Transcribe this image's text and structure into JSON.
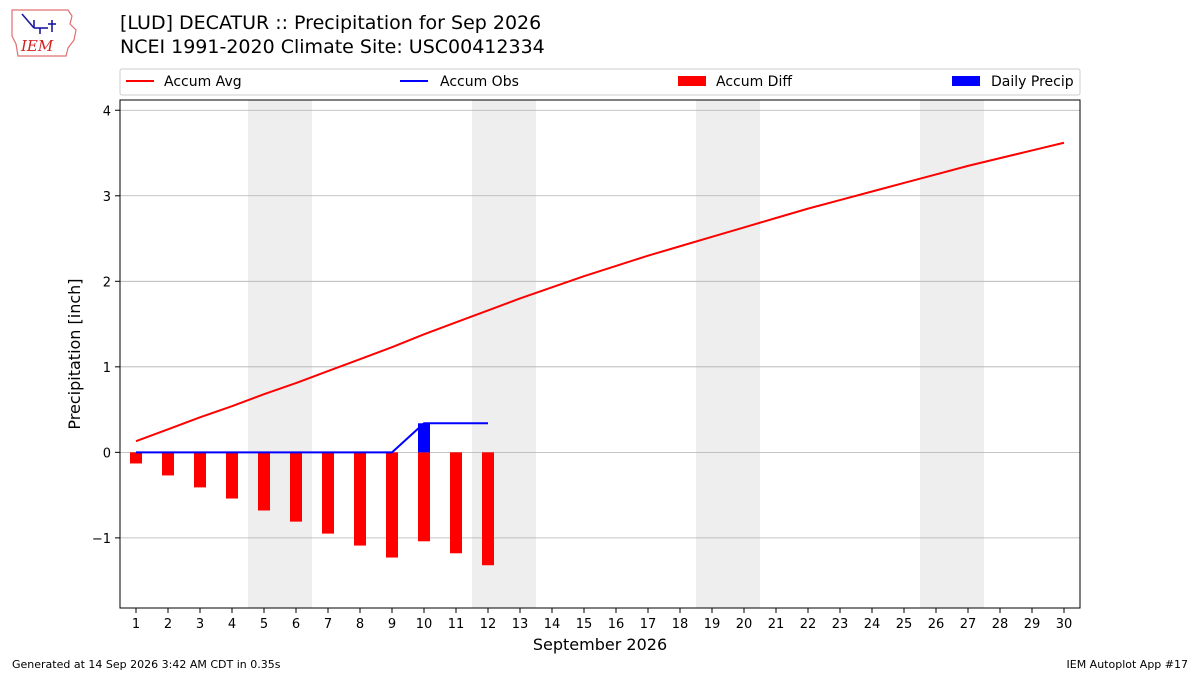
{
  "header": {
    "title_line1": "[LUD] DECATUR :: Precipitation for Sep 2026",
    "title_line2": "NCEI 1991-2020 Climate Site: USC00412334",
    "logo_text": "IEM"
  },
  "footer": {
    "generated": "Generated at 14 Sep 2026 3:42 AM CDT in 0.35s",
    "app": "IEM Autoplot App #17"
  },
  "colors": {
    "accum_avg": "#ff0000",
    "accum_obs": "#0000ff",
    "accum_diff": "#ff0000",
    "daily_precip": "#0000ff",
    "weekend_shade": "#eeeeee",
    "grid": "#b0b0b0"
  },
  "chart_data": {
    "type": "line",
    "xlabel": "September 2026",
    "ylabel": "Precipitation [inch]",
    "x": [
      1,
      2,
      3,
      4,
      5,
      6,
      7,
      8,
      9,
      10,
      11,
      12,
      13,
      14,
      15,
      16,
      17,
      18,
      19,
      20,
      21,
      22,
      23,
      24,
      25,
      26,
      27,
      28,
      29,
      30
    ],
    "x_tick_labels": [
      "1",
      "2",
      "3",
      "4",
      "5",
      "6",
      "7",
      "8",
      "9",
      "10",
      "11",
      "12",
      "13",
      "14",
      "15",
      "16",
      "17",
      "18",
      "19",
      "20",
      "21",
      "22",
      "23",
      "24",
      "25",
      "26",
      "27",
      "28",
      "29",
      "30"
    ],
    "xlim": [
      0.5,
      30.5
    ],
    "ylim": [
      -1.82,
      4.12
    ],
    "y_ticks": [
      -1,
      0,
      1,
      2,
      3,
      4
    ],
    "y_tick_labels": [
      "−1",
      "0",
      "1",
      "2",
      "3",
      "4"
    ],
    "grid": "horizontal",
    "weekend_spans": [
      [
        4.5,
        6.5
      ],
      [
        11.5,
        13.5
      ],
      [
        18.5,
        20.5
      ],
      [
        25.5,
        27.5
      ]
    ],
    "legend_position": "top, above plot",
    "series": [
      {
        "name": "Accum Avg",
        "type": "line",
        "x": [
          1,
          2,
          3,
          4,
          5,
          6,
          7,
          8,
          9,
          10,
          11,
          12,
          13,
          14,
          15,
          16,
          17,
          18,
          19,
          20,
          21,
          22,
          23,
          24,
          25,
          26,
          27,
          28,
          29,
          30
        ],
        "values": [
          0.13,
          0.27,
          0.41,
          0.54,
          0.68,
          0.81,
          0.95,
          1.09,
          1.23,
          1.38,
          1.52,
          1.66,
          1.8,
          1.93,
          2.06,
          2.18,
          2.3,
          2.41,
          2.52,
          2.63,
          2.74,
          2.85,
          2.95,
          3.05,
          3.15,
          3.25,
          3.35,
          3.44,
          3.53,
          3.62
        ]
      },
      {
        "name": "Accum Obs",
        "type": "line",
        "x": [
          1,
          2,
          3,
          4,
          5,
          6,
          7,
          8,
          9,
          10,
          11,
          12
        ],
        "values": [
          0,
          0,
          0,
          0,
          0,
          0,
          0,
          0,
          0,
          0.34,
          0.34,
          0.34
        ]
      },
      {
        "name": "Accum Diff",
        "type": "bar",
        "x": [
          1,
          2,
          3,
          4,
          5,
          6,
          7,
          8,
          9,
          10,
          11,
          12
        ],
        "values": [
          -0.13,
          -0.27,
          -0.41,
          -0.54,
          -0.68,
          -0.81,
          -0.95,
          -1.09,
          -1.23,
          -1.04,
          -1.18,
          -1.32
        ]
      },
      {
        "name": "Daily Precip",
        "type": "bar",
        "x": [
          10
        ],
        "values": [
          0.34
        ]
      }
    ]
  }
}
